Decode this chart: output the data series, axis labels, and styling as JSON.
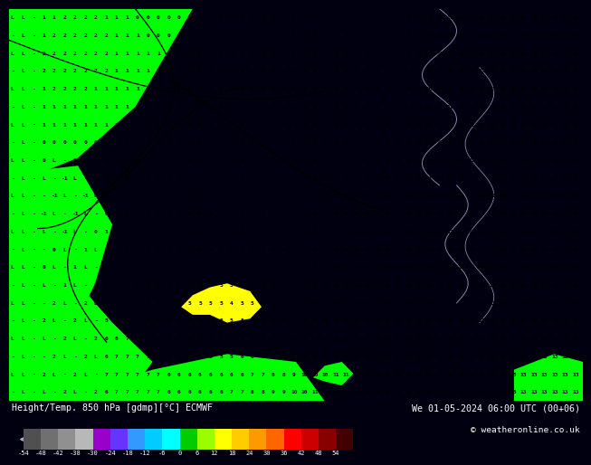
{
  "title_left": "Height/Temp. 850 hPa [gdmp][°C] ECMWF",
  "title_right": "We 01-05-2024 06:00 UTC (00+06)",
  "copyright": "© weatheronline.co.uk",
  "colorbar_tick_labels": [
    "-54",
    "-48",
    "-42",
    "-38",
    "-30",
    "-24",
    "-18",
    "-12",
    "-6",
    "0",
    "6",
    "12",
    "18",
    "24",
    "30",
    "36",
    "42",
    "48",
    "54"
  ],
  "colorbar_colors": [
    "#505050",
    "#707070",
    "#909090",
    "#b8b8b8",
    "#9900cc",
    "#6633ff",
    "#3399ff",
    "#00ccff",
    "#00ffff",
    "#00cc00",
    "#99ff00",
    "#ffff00",
    "#ffcc00",
    "#ff9900",
    "#ff6600",
    "#ff0000",
    "#cc0000",
    "#880000",
    "#440000"
  ],
  "bg_color": "#000010",
  "text_color": "#ffffff",
  "map_number_color": "#000000",
  "yellow_bg": "#ffff00",
  "green_bright": "#00ff00",
  "yellow_patch": "#ffff00",
  "contour_color": "#000000",
  "coast_color": "#8888aa"
}
